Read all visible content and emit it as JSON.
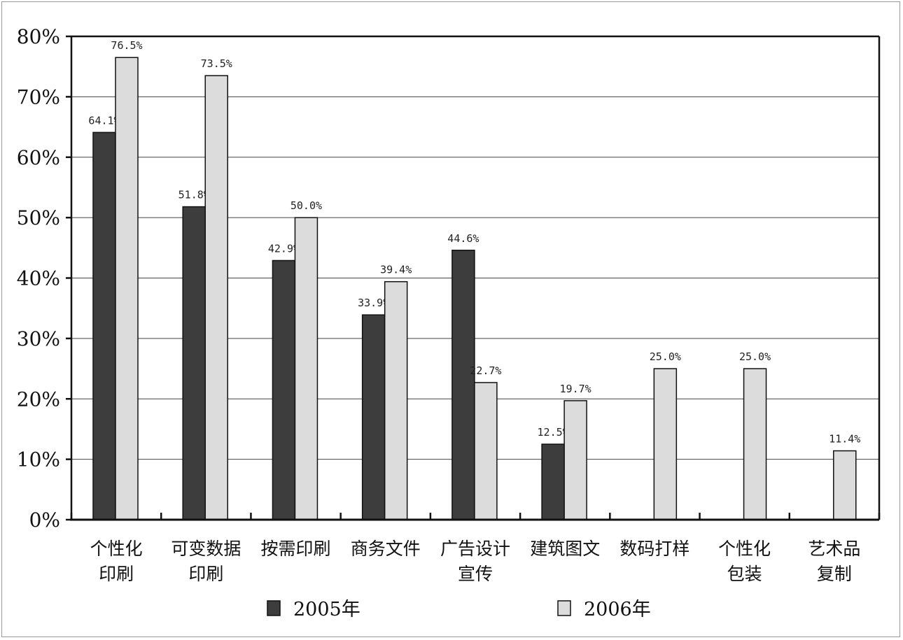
{
  "chart_data": {
    "type": "bar",
    "categories": [
      [
        "个性化",
        "印刷"
      ],
      [
        "可变数据",
        "印刷"
      ],
      [
        "按需印刷"
      ],
      [
        "商务文件"
      ],
      [
        "广告设计",
        "宣传"
      ],
      [
        "建筑图文"
      ],
      [
        "数码打样"
      ],
      [
        "个性化",
        "包装"
      ],
      [
        "艺术品",
        "复制"
      ]
    ],
    "series": [
      {
        "name": "2005年",
        "color": "#3d3d3d",
        "values": [
          64.1,
          51.8,
          42.9,
          33.9,
          44.6,
          12.5,
          null,
          null,
          null
        ],
        "labels": [
          "64.1%",
          "51.8%",
          "42.9%",
          "33.9%",
          "44.6%",
          "12.5%",
          "",
          "",
          ""
        ]
      },
      {
        "name": "2006年",
        "color": "#dcdcdc",
        "values": [
          76.5,
          73.5,
          50.0,
          39.4,
          22.7,
          19.7,
          25.0,
          25.0,
          11.4
        ],
        "labels": [
          "76.5%",
          "73.5%",
          "50.0%",
          "39.4%",
          "22.7%",
          "19.7%",
          "25.0%",
          "25.0%",
          "11.4%"
        ]
      }
    ],
    "yticks": [
      "0%",
      "10%",
      "20%",
      "30%",
      "40%",
      "50%",
      "60%",
      "70%",
      "80%"
    ],
    "ylim": [
      0,
      80
    ],
    "grid": true,
    "legend_position": "bottom",
    "title": "",
    "xlabel": "",
    "ylabel": ""
  }
}
